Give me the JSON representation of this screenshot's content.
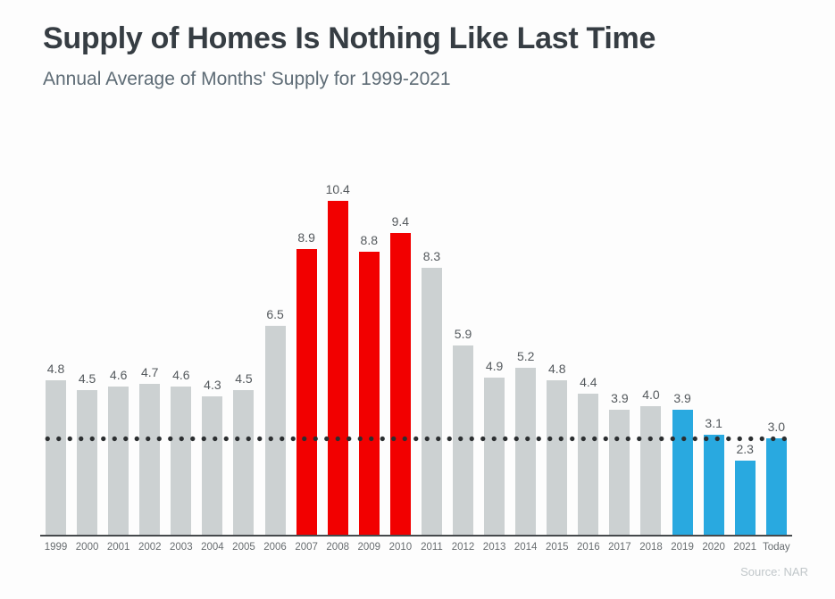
{
  "header": {
    "title": "Supply of Homes Is Nothing Like Last Time",
    "subtitle": "Annual Average of Months' Supply for 1999-2021"
  },
  "source_note": "Source: NAR",
  "colors": {
    "gray": "#ccd1d2",
    "red": "#f20000",
    "blue": "#29a9e0",
    "dotted_line": "#2b2e30",
    "title_text": "#363d43",
    "subtitle_text": "#5d6b75",
    "value_label_text": "#54595d",
    "axis_label_text": "#686d70",
    "axis_line": "#45494c",
    "source_text": "#c1c7ca"
  },
  "chart_data": {
    "type": "bar",
    "title": "Supply of Homes Is Nothing Like Last Time",
    "subtitle": "Annual Average of Months' Supply for 1999-2021",
    "categories": [
      "1999",
      "2000",
      "2001",
      "2002",
      "2003",
      "2004",
      "2005",
      "2006",
      "2007",
      "2008",
      "2009",
      "2010",
      "2011",
      "2012",
      "2013",
      "2014",
      "2015",
      "2016",
      "2017",
      "2018",
      "2019",
      "2020",
      "2021",
      "Today"
    ],
    "values": [
      4.8,
      4.5,
      4.6,
      4.7,
      4.6,
      4.3,
      4.5,
      6.5,
      8.9,
      10.4,
      8.8,
      9.4,
      8.3,
      5.9,
      4.9,
      5.2,
      4.8,
      4.4,
      3.9,
      4.0,
      3.9,
      3.1,
      2.3,
      3.0
    ],
    "bar_colors": [
      "gray",
      "gray",
      "gray",
      "gray",
      "gray",
      "gray",
      "gray",
      "gray",
      "red",
      "red",
      "red",
      "red",
      "gray",
      "gray",
      "gray",
      "gray",
      "gray",
      "gray",
      "gray",
      "gray",
      "blue",
      "blue",
      "blue",
      "blue"
    ],
    "reference_line": 3.0,
    "data_labels": "on",
    "grid": "off",
    "y_axis": "hidden",
    "ylim": [
      0,
      12.8
    ],
    "xlabel": "",
    "ylabel": "Months' Supply",
    "source": "Source: NAR"
  }
}
